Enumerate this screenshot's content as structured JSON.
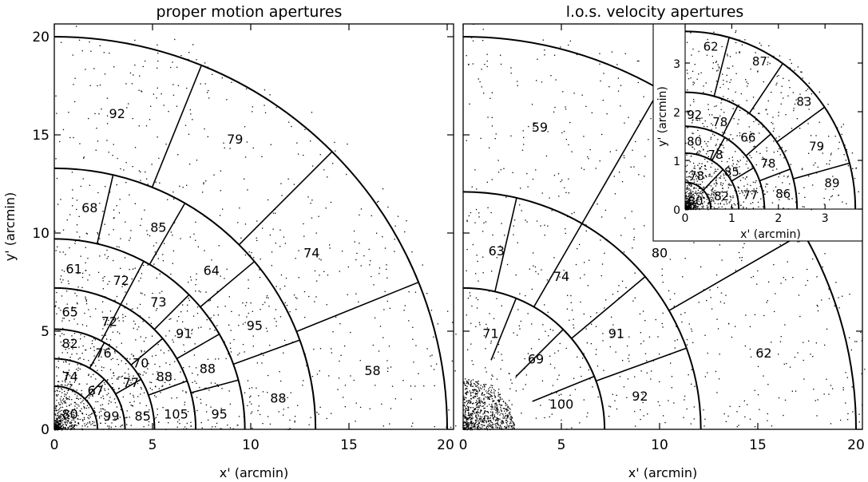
{
  "chart_data": [
    {
      "type": "scatter",
      "title": "proper motion apertures",
      "xlabel": "x' (arcmin)",
      "ylabel": "y' (arcmin)",
      "xlim": [
        0,
        20.5
      ],
      "ylim": [
        0,
        21
      ],
      "x_ticks": [
        "0",
        "5",
        "10",
        "15",
        "20"
      ],
      "y_ticks": [
        "0",
        "5",
        "10",
        "15",
        "20"
      ],
      "ring_radii": [
        2.2,
        3.6,
        5.1,
        7.2,
        9.7,
        13.3,
        20.0
      ],
      "apertures": [
        {
          "label": "80",
          "x": 0.8,
          "y": 0.8
        },
        {
          "label": "99",
          "x": 2.9,
          "y": 0.7
        },
        {
          "label": "85",
          "x": 4.5,
          "y": 0.7
        },
        {
          "label": "105",
          "x": 6.2,
          "y": 0.8
        },
        {
          "label": "95",
          "x": 8.4,
          "y": 0.8
        },
        {
          "label": "88",
          "x": 11.4,
          "y": 1.6
        },
        {
          "label": "58",
          "x": 16.2,
          "y": 3.0
        },
        {
          "label": "74",
          "x": 0.8,
          "y": 2.7
        },
        {
          "label": "67",
          "x": 2.1,
          "y": 2.0
        },
        {
          "label": "77",
          "x": 3.9,
          "y": 2.4
        },
        {
          "label": "88",
          "x": 5.6,
          "y": 2.7
        },
        {
          "label": "88",
          "x": 7.8,
          "y": 3.1
        },
        {
          "label": "82",
          "x": 0.8,
          "y": 4.4
        },
        {
          "label": "76",
          "x": 2.5,
          "y": 3.9
        },
        {
          "label": "70",
          "x": 4.4,
          "y": 3.4
        },
        {
          "label": "91",
          "x": 6.6,
          "y": 4.9
        },
        {
          "label": "95",
          "x": 10.2,
          "y": 5.3
        },
        {
          "label": "65",
          "x": 0.8,
          "y": 6.0
        },
        {
          "label": "72",
          "x": 2.8,
          "y": 5.5
        },
        {
          "label": "73",
          "x": 5.3,
          "y": 6.5
        },
        {
          "label": "61",
          "x": 1.0,
          "y": 8.2
        },
        {
          "label": "72",
          "x": 3.4,
          "y": 7.6
        },
        {
          "label": "64",
          "x": 8.0,
          "y": 8.1
        },
        {
          "label": "74",
          "x": 13.1,
          "y": 9.0
        },
        {
          "label": "68",
          "x": 1.8,
          "y": 11.3
        },
        {
          "label": "85",
          "x": 5.3,
          "y": 10.3
        },
        {
          "label": "79",
          "x": 9.2,
          "y": 14.8
        },
        {
          "label": "92",
          "x": 3.2,
          "y": 16.1
        }
      ]
    },
    {
      "type": "scatter",
      "title": "l.o.s. velocity apertures",
      "xlabel": "x' (arcmin)",
      "ylabel": "",
      "xlim": [
        0,
        20.5
      ],
      "ylim": [
        0,
        21
      ],
      "x_ticks": [
        "0",
        "5",
        "10",
        "15",
        "20"
      ],
      "ring_radii": [
        7.2,
        12.1,
        20.0
      ],
      "apertures": [
        {
          "label": "71",
          "x": 1.4,
          "y": 4.9
        },
        {
          "label": "69",
          "x": 3.7,
          "y": 3.6
        },
        {
          "label": "100",
          "x": 5.0,
          "y": 1.3
        },
        {
          "label": "92",
          "x": 9.0,
          "y": 1.7
        },
        {
          "label": "91",
          "x": 7.8,
          "y": 4.9
        },
        {
          "label": "62",
          "x": 15.3,
          "y": 3.9
        },
        {
          "label": "74",
          "x": 5.0,
          "y": 7.8
        },
        {
          "label": "63",
          "x": 1.7,
          "y": 9.1
        },
        {
          "label": "80",
          "x": 10.0,
          "y": 9.0
        },
        {
          "label": "59",
          "x": 3.9,
          "y": 15.4
        }
      ]
    },
    {
      "type": "scatter",
      "title": "",
      "xlabel": "x' (arcmin)",
      "ylabel": "y' (arcmin)",
      "xlim": [
        0,
        3.8
      ],
      "ylim": [
        0,
        3.8
      ],
      "x_ticks": [
        "0",
        "1",
        "2",
        "3"
      ],
      "y_ticks": [
        "0",
        "1",
        "2",
        "3"
      ],
      "ring_radii": [
        0.55,
        1.15,
        1.7,
        2.4,
        3.65
      ],
      "apertures": [
        {
          "label": "80",
          "x": 0.22,
          "y": 0.18
        },
        {
          "label": "82",
          "x": 0.78,
          "y": 0.28
        },
        {
          "label": "77",
          "x": 1.4,
          "y": 0.3
        },
        {
          "label": "86",
          "x": 2.1,
          "y": 0.33
        },
        {
          "label": "89",
          "x": 3.15,
          "y": 0.55
        },
        {
          "label": "78",
          "x": 0.25,
          "y": 0.7
        },
        {
          "label": "85",
          "x": 1.0,
          "y": 0.78
        },
        {
          "label": "78",
          "x": 1.78,
          "y": 0.95
        },
        {
          "label": "79",
          "x": 2.82,
          "y": 1.3
        },
        {
          "label": "78",
          "x": 0.65,
          "y": 1.13
        },
        {
          "label": "66",
          "x": 1.35,
          "y": 1.48
        },
        {
          "label": "80",
          "x": 0.2,
          "y": 1.4
        },
        {
          "label": "78",
          "x": 0.75,
          "y": 1.8
        },
        {
          "label": "83",
          "x": 2.55,
          "y": 2.22
        },
        {
          "label": "92",
          "x": 0.2,
          "y": 1.95
        },
        {
          "label": "87",
          "x": 1.6,
          "y": 3.05
        },
        {
          "label": "62",
          "x": 0.55,
          "y": 3.35
        }
      ]
    }
  ]
}
